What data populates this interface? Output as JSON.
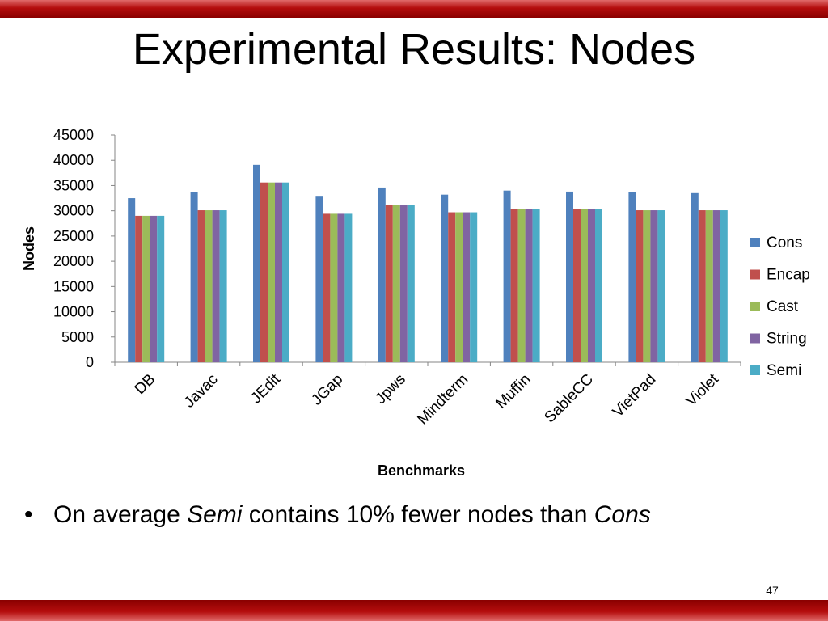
{
  "slide": {
    "title": "Experimental Results: Nodes",
    "page_number": "47",
    "bullet": {
      "marker": "•",
      "text_a": "On average ",
      "emph_a": "Semi",
      "text_b": " contains 10% fewer nodes than ",
      "emph_b": "Cons"
    }
  },
  "chart_data": {
    "type": "bar",
    "title": "",
    "xlabel": "Benchmarks",
    "ylabel": "Nodes",
    "ylim": [
      0,
      45000
    ],
    "ytick_step": 5000,
    "yticks": [
      "0",
      "5000",
      "10000",
      "15000",
      "20000",
      "25000",
      "30000",
      "35000",
      "40000",
      "45000"
    ],
    "grid": false,
    "legend_position": "right",
    "categories": [
      "DB",
      "Javac",
      "JEdit",
      "JGap",
      "Jpws",
      "Mindterm",
      "Muffin",
      "SableCC",
      "VietPad",
      "Violet"
    ],
    "series": [
      {
        "name": "Cons",
        "color": "#4f81bd",
        "values": [
          32500,
          33700,
          39100,
          32800,
          34600,
          33200,
          34000,
          33800,
          33700,
          33500
        ]
      },
      {
        "name": "Encap",
        "color": "#c0504d",
        "values": [
          29000,
          30100,
          35600,
          29400,
          31100,
          29700,
          30300,
          30300,
          30100,
          30100
        ]
      },
      {
        "name": "Cast",
        "color": "#9bbb59",
        "values": [
          29000,
          30100,
          35600,
          29400,
          31100,
          29700,
          30300,
          30300,
          30100,
          30100
        ]
      },
      {
        "name": "String",
        "color": "#8064a2",
        "values": [
          29000,
          30100,
          35600,
          29400,
          31100,
          29700,
          30300,
          30300,
          30100,
          30100
        ]
      },
      {
        "name": "Semi",
        "color": "#4bacc6",
        "values": [
          29000,
          30100,
          35600,
          29400,
          31100,
          29700,
          30300,
          30300,
          30100,
          30100
        ]
      }
    ]
  }
}
